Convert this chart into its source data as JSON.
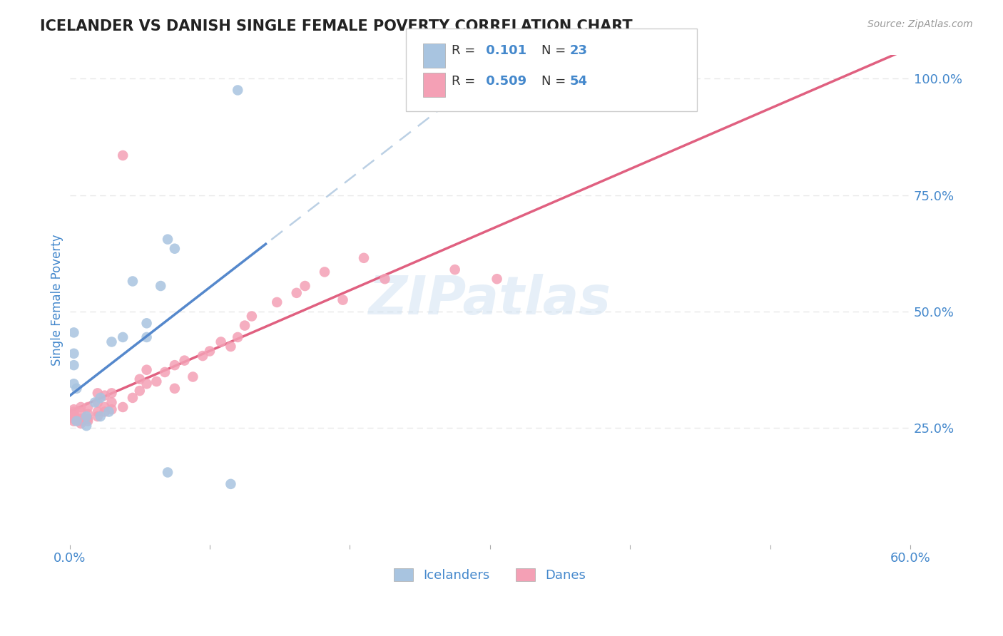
{
  "title": "ICELANDER VS DANISH SINGLE FEMALE POVERTY CORRELATION CHART",
  "source": "Source: ZipAtlas.com",
  "ylabel": "Single Female Poverty",
  "x_min": 0.0,
  "x_max": 0.6,
  "y_min": 0.0,
  "y_max": 1.05,
  "x_ticks": [
    0.0,
    0.1,
    0.2,
    0.3,
    0.4,
    0.5,
    0.6
  ],
  "x_tick_labels": [
    "0.0%",
    "",
    "",
    "",
    "",
    "",
    "60.0%"
  ],
  "y_ticks": [
    0.25,
    0.5,
    0.75,
    1.0
  ],
  "y_tick_labels": [
    "25.0%",
    "50.0%",
    "75.0%",
    "100.0%"
  ],
  "icelanders_color": "#a8c4e0",
  "danes_color": "#f4a0b5",
  "icelanders_line_color": "#5588cc",
  "danes_line_color": "#e06080",
  "trendline_dashed_color": "#b0c8e0",
  "R_ice": 0.101,
  "N_ice": 23,
  "R_dane": 0.509,
  "N_dane": 54,
  "watermark": "ZIPatlas",
  "icelanders_x": [
    0.005,
    0.018,
    0.005,
    0.003,
    0.003,
    0.003,
    0.003,
    0.012,
    0.012,
    0.022,
    0.028,
    0.022,
    0.03,
    0.038,
    0.045,
    0.055,
    0.065,
    0.055,
    0.075,
    0.07,
    0.07,
    0.115,
    0.12
  ],
  "icelanders_y": [
    0.265,
    0.305,
    0.335,
    0.345,
    0.385,
    0.41,
    0.455,
    0.255,
    0.275,
    0.275,
    0.285,
    0.315,
    0.435,
    0.445,
    0.565,
    0.445,
    0.555,
    0.475,
    0.635,
    0.655,
    0.155,
    0.13,
    0.975
  ],
  "danes_x": [
    0.003,
    0.003,
    0.003,
    0.003,
    0.003,
    0.003,
    0.008,
    0.008,
    0.008,
    0.008,
    0.008,
    0.013,
    0.013,
    0.013,
    0.013,
    0.02,
    0.02,
    0.02,
    0.02,
    0.025,
    0.025,
    0.025,
    0.03,
    0.03,
    0.03,
    0.038,
    0.038,
    0.045,
    0.05,
    0.05,
    0.055,
    0.055,
    0.062,
    0.068,
    0.075,
    0.075,
    0.082,
    0.088,
    0.095,
    0.1,
    0.108,
    0.115,
    0.12,
    0.125,
    0.13,
    0.148,
    0.162,
    0.168,
    0.182,
    0.195,
    0.21,
    0.225,
    0.275,
    0.305
  ],
  "danes_y": [
    0.265,
    0.27,
    0.275,
    0.28,
    0.285,
    0.29,
    0.26,
    0.265,
    0.27,
    0.285,
    0.295,
    0.265,
    0.27,
    0.28,
    0.295,
    0.275,
    0.285,
    0.305,
    0.325,
    0.285,
    0.295,
    0.32,
    0.29,
    0.305,
    0.325,
    0.295,
    0.835,
    0.315,
    0.33,
    0.355,
    0.345,
    0.375,
    0.35,
    0.37,
    0.385,
    0.335,
    0.395,
    0.36,
    0.405,
    0.415,
    0.435,
    0.425,
    0.445,
    0.47,
    0.49,
    0.52,
    0.54,
    0.555,
    0.585,
    0.525,
    0.615,
    0.57,
    0.59,
    0.57
  ],
  "background_color": "#ffffff",
  "grid_color": "#e8e8e8",
  "title_color": "#222222",
  "tick_label_color": "#4488cc",
  "legend_val_color": "#4488cc"
}
